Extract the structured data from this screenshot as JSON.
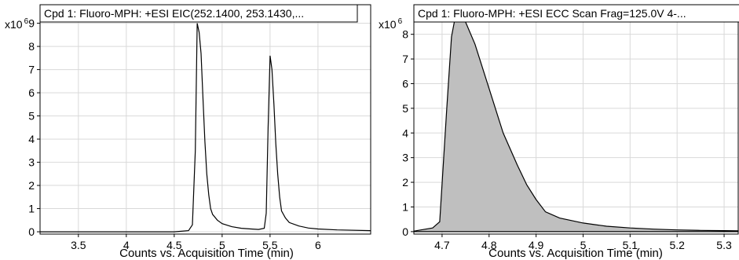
{
  "chart_data": [
    {
      "type": "line",
      "title": "Cpd 1: Fluoro-MPH: +ESI EIC(252.1400, 253.1430,...",
      "xlabel": "Counts vs. Acquisition Time (min)",
      "ylabel": "",
      "y_multiplier": {
        "base": "x10",
        "exp": "6"
      },
      "xlim": [
        3.1,
        6.55
      ],
      "ylim": [
        -0.1,
        9.8
      ],
      "x_ticks": [
        3.5,
        4,
        4.5,
        5,
        5.5,
        6
      ],
      "x_tick_labels": [
        "3.5",
        "4",
        "4.5",
        "5",
        "5.5",
        "6"
      ],
      "y_ticks": [
        0,
        1,
        2,
        3,
        4,
        5,
        6,
        7,
        8,
        9
      ],
      "y_tick_labels": [
        "0",
        "1",
        "2",
        "3",
        "4",
        "5",
        "6",
        "7",
        "8",
        "9"
      ],
      "grid": true,
      "series": [
        {
          "fill": false,
          "x": [
            3.1,
            4.5,
            4.65,
            4.69,
            4.72,
            4.74,
            4.76,
            4.78,
            4.8,
            4.82,
            4.84,
            4.86,
            4.88,
            4.9,
            4.95,
            5.0,
            5.1,
            5.2,
            5.3,
            5.38,
            5.44,
            5.46,
            5.48,
            5.5,
            5.52,
            5.54,
            5.56,
            5.58,
            5.6,
            5.62,
            5.66,
            5.7,
            5.8,
            5.9,
            6.0,
            6.2,
            6.55
          ],
          "y": [
            0.0,
            0.0,
            0.05,
            0.3,
            3.5,
            9.0,
            8.6,
            7.7,
            5.8,
            3.9,
            2.5,
            1.6,
            1.0,
            0.75,
            0.5,
            0.35,
            0.22,
            0.15,
            0.12,
            0.1,
            0.15,
            0.8,
            4.5,
            7.6,
            7.0,
            5.5,
            3.8,
            2.5,
            1.5,
            0.9,
            0.6,
            0.4,
            0.25,
            0.16,
            0.12,
            0.08,
            0.05
          ]
        }
      ]
    },
    {
      "type": "area",
      "title": "Cpd 1: Fluoro-MPH: +ESI ECC Scan Frag=125.0V 4-...",
      "xlabel": "Counts vs. Acquisition Time (min)",
      "ylabel": "",
      "y_multiplier": {
        "base": "x10",
        "exp": "6"
      },
      "xlim": [
        4.64,
        5.33
      ],
      "ylim": [
        -0.1,
        9.2
      ],
      "x_ticks": [
        4.7,
        4.8,
        4.9,
        5.0,
        5.1,
        5.2,
        5.3
      ],
      "x_tick_labels": [
        "4.7",
        "4.8",
        "4.9",
        "5",
        "5.1",
        "5.2",
        "5.3"
      ],
      "y_ticks": [
        0,
        1,
        2,
        3,
        4,
        5,
        6,
        7,
        8
      ],
      "y_tick_labels": [
        "0",
        "1",
        "2",
        "3",
        "4",
        "5",
        "6",
        "7",
        "8"
      ],
      "grid": true,
      "series": [
        {
          "fill": true,
          "x": [
            4.64,
            4.68,
            4.695,
            4.71,
            4.72,
            4.73,
            4.75,
            4.77,
            4.8,
            4.83,
            4.86,
            4.88,
            4.9,
            4.92,
            4.95,
            5.0,
            5.05,
            5.1,
            5.15,
            5.2,
            5.25,
            5.3,
            5.33
          ],
          "y": [
            0.02,
            0.15,
            0.4,
            5.0,
            7.9,
            8.9,
            8.5,
            7.6,
            5.8,
            4.0,
            2.7,
            1.9,
            1.3,
            0.8,
            0.55,
            0.35,
            0.22,
            0.15,
            0.1,
            0.07,
            0.05,
            0.04,
            0.03
          ]
        }
      ]
    }
  ]
}
